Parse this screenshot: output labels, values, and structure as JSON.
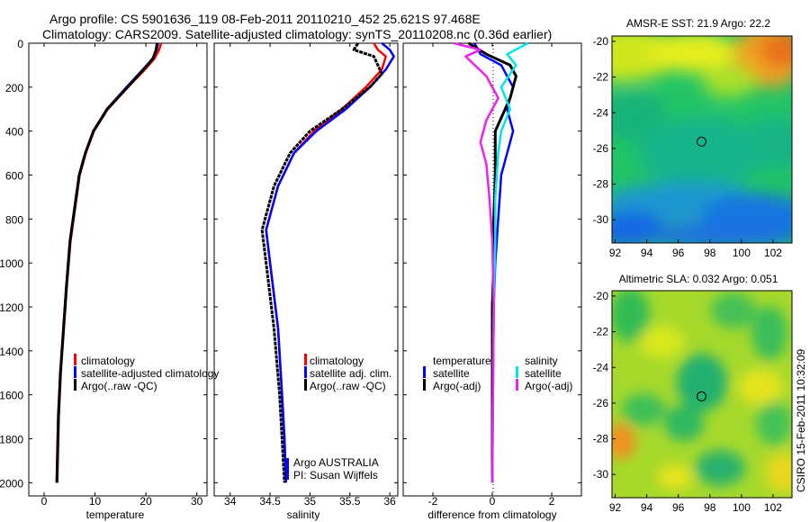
{
  "header": {
    "line1": "Argo profile: CS 5901636_119 08-Feb-2011 20110210_452 25.621S 97.468E",
    "line2": "Climatology: CARS2009. Satellite-adjusted climatology: synTS_20110208.nc (0.36d earlier)"
  },
  "side_label": "CSIRO 15-Feb-2011 10:32:09",
  "colors": {
    "climatology": "#ff0000",
    "satellite": "#0000ff",
    "argo": "#000000",
    "sal_satellite": "#00e5ee",
    "sal_argo": "#ee22ee"
  },
  "chart_data": [
    {
      "type": "line",
      "name": "temperature-profile",
      "xlabel": "temperature",
      "xlim": [
        -3,
        32
      ],
      "ylim": [
        2060,
        0
      ],
      "xticks": [
        0,
        10,
        20,
        30
      ],
      "yticks": [
        0,
        200,
        400,
        600,
        800,
        1000,
        1200,
        1400,
        1600,
        1800,
        2000
      ],
      "legend": [
        "climatology",
        "satellite-adjusted climatology",
        "Argo(..raw -QC)"
      ],
      "series": [
        {
          "name": "climatology",
          "color": "#ff0000",
          "x": [
            23.0,
            22.6,
            21.7,
            19.8,
            16.5,
            12.5,
            9.8,
            8.2,
            7.0,
            5.2,
            4.5,
            3.9,
            3.3,
            2.9,
            2.6
          ],
          "y": [
            0,
            30,
            70,
            120,
            200,
            300,
            400,
            500,
            600,
            900,
            1100,
            1300,
            1500,
            1700,
            2000
          ]
        },
        {
          "name": "satellite-adjusted climatology",
          "color": "#0000ff",
          "x": [
            22.4,
            22.1,
            21.3,
            19.4,
            16.2,
            12.3,
            9.7,
            8.1,
            6.9,
            5.1,
            4.4,
            3.8,
            3.2,
            2.8,
            2.5
          ],
          "y": [
            0,
            30,
            70,
            120,
            200,
            300,
            400,
            500,
            600,
            900,
            1100,
            1300,
            1500,
            1700,
            2000
          ]
        },
        {
          "name": "Argo(..raw -QC)",
          "color": "#000000",
          "x": [
            22.2,
            22.0,
            21.4,
            19.5,
            16.4,
            12.4,
            9.7,
            8.1,
            6.9,
            5.1,
            4.4,
            3.8,
            3.2,
            2.8,
            2.5
          ],
          "y": [
            0,
            30,
            70,
            120,
            200,
            300,
            400,
            500,
            600,
            900,
            1100,
            1300,
            1500,
            1700,
            2000
          ]
        }
      ]
    },
    {
      "type": "line",
      "name": "salinity-profile",
      "xlabel": "salinity",
      "xlim": [
        33.8,
        36.1
      ],
      "ylim": [
        2060,
        0
      ],
      "xticks": [
        34,
        34.5,
        35,
        35.5,
        36
      ],
      "legend": [
        "climatology",
        "satellite adj. clim.",
        "Argo(..raw -QC)"
      ],
      "annotation": [
        "Argo AUSTRALIA",
        "PI: Susan Wijffels"
      ],
      "series": [
        {
          "name": "climatology",
          "color": "#ff0000",
          "x": [
            35.8,
            35.85,
            35.95,
            35.9,
            35.7,
            35.4,
            35.05,
            34.8,
            34.6,
            34.45,
            34.5,
            34.6,
            34.65,
            34.68,
            34.7
          ],
          "y": [
            0,
            30,
            60,
            120,
            200,
            300,
            400,
            500,
            650,
            850,
            1000,
            1300,
            1600,
            1800,
            2000
          ]
        },
        {
          "name": "satellite adj. clim.",
          "color": "#0000ff",
          "x": [
            35.9,
            36.0,
            36.05,
            35.95,
            35.75,
            35.45,
            35.08,
            34.8,
            34.6,
            34.45,
            34.5,
            34.6,
            34.65,
            34.68,
            34.7
          ],
          "y": [
            0,
            30,
            60,
            120,
            200,
            300,
            400,
            500,
            650,
            850,
            1000,
            1300,
            1600,
            1800,
            2000
          ]
        },
        {
          "name": "Argo(..raw -QC)",
          "color": "#000000",
          "x": [
            35.6,
            35.55,
            35.8,
            35.9,
            35.75,
            35.4,
            35.0,
            34.75,
            34.55,
            34.4,
            34.45,
            34.55,
            34.62,
            34.65,
            34.68
          ],
          "y": [
            0,
            30,
            60,
            140,
            200,
            300,
            400,
            500,
            650,
            850,
            1000,
            1300,
            1600,
            1800,
            2000
          ]
        }
      ]
    },
    {
      "type": "line",
      "name": "difference-profile",
      "xlabel": "difference from climatology",
      "xlim": [
        -3,
        3
      ],
      "ylim": [
        2060,
        0
      ],
      "xticks": [
        -2,
        0,
        2
      ],
      "legend_groups": [
        {
          "title": "temperature",
          "entries": [
            "satellite",
            "Argo(-adj)"
          ]
        },
        {
          "title": "salinity",
          "entries": [
            "satellite",
            "Argo(-adj)"
          ]
        }
      ],
      "series": [
        {
          "name": "temperature satellite",
          "color": "#0000ff",
          "x": [
            -0.6,
            -0.4,
            0.3,
            0.7,
            0.5,
            0.7,
            0.5,
            0.3,
            0.2,
            0.1,
            0.05,
            0.02,
            0
          ],
          "y": [
            0,
            50,
            100,
            200,
            300,
            400,
            500,
            600,
            800,
            1000,
            1200,
            1600,
            2000
          ]
        },
        {
          "name": "temperature Argo(-adj)",
          "color": "#000000",
          "x": [
            -0.8,
            -0.2,
            0.6,
            0.8,
            0.6,
            0.1,
            0.1,
            0.05,
            0.05,
            0,
            0,
            0
          ],
          "y": [
            0,
            50,
            100,
            150,
            250,
            400,
            600,
            800,
            1000,
            1200,
            1600,
            2000
          ]
        },
        {
          "name": "salinity satellite",
          "color": "#00e5ee",
          "x": [
            1.2,
            0.5,
            0.8,
            0.3,
            0.6,
            0.3,
            0.2,
            0.1,
            0.1,
            0.05,
            0.02,
            0
          ],
          "y": [
            0,
            50,
            100,
            200,
            300,
            400,
            500,
            700,
            900,
            1200,
            1600,
            2000
          ]
        },
        {
          "name": "salinity Argo(-adj)",
          "color": "#ee22ee",
          "x": [
            -1.3,
            -0.4,
            -0.9,
            -0.2,
            0.2,
            -0.2,
            -0.4,
            -0.2,
            -0.1,
            0,
            0.05,
            0.02,
            0
          ],
          "y": [
            0,
            30,
            60,
            150,
            250,
            350,
            450,
            550,
            700,
            900,
            1200,
            1600,
            2000
          ]
        }
      ]
    },
    {
      "type": "heatmap",
      "name": "sst-map",
      "title": "AMSR-E SST: 21.9 Argo: 22.2",
      "xlim": [
        91.8,
        103.2
      ],
      "ylim": [
        -31.3,
        -19.7
      ],
      "xticks": [
        92,
        94,
        96,
        98,
        100,
        102
      ],
      "yticks": [
        -20,
        -22,
        -24,
        -26,
        -28,
        -30
      ],
      "marker": {
        "lon": 97.47,
        "lat": -25.62
      }
    },
    {
      "type": "heatmap",
      "name": "sla-map",
      "title": "Altimetric SLA: 0.032 Argo: 0.051",
      "xlim": [
        91.8,
        103.2
      ],
      "ylim": [
        -31.3,
        -19.7
      ],
      "xticks": [
        92,
        94,
        96,
        98,
        100,
        102
      ],
      "yticks": [
        -20,
        -22,
        -24,
        -26,
        -28,
        -30
      ],
      "marker": {
        "lon": 97.47,
        "lat": -25.62
      }
    }
  ]
}
